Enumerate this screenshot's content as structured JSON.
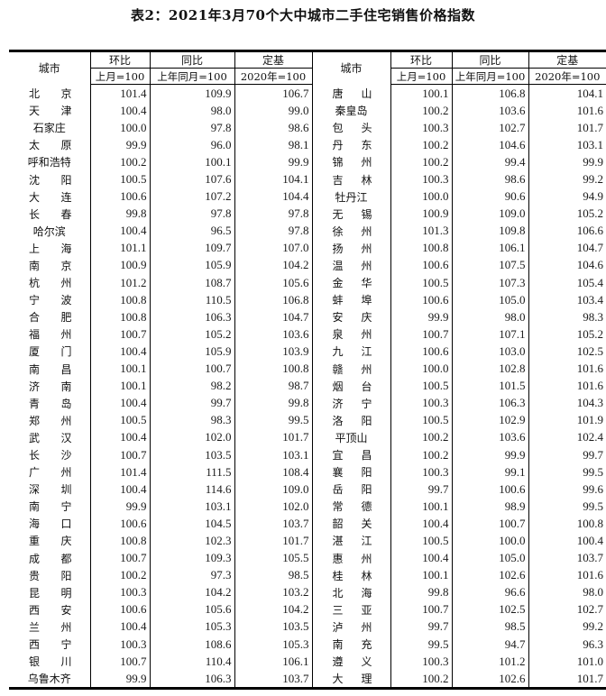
{
  "title": "表2：2021年3月70个大中城市二手住宅销售价格指数",
  "headers": {
    "city": "城市",
    "mom": "环比",
    "yoy": "同比",
    "base": "定基",
    "mom_sub": "上月=100",
    "yoy_sub": "上年同月=100",
    "base_sub": "2020年=100"
  },
  "rows": [
    [
      [
        "北京",
        "101.4",
        "109.9",
        "106.7"
      ],
      [
        "唐山",
        "100.1",
        "106.8",
        "104.1"
      ]
    ],
    [
      [
        "天津",
        "100.4",
        "98.0",
        "99.0"
      ],
      [
        "秦皇岛",
        "100.2",
        "103.6",
        "101.6"
      ]
    ],
    [
      [
        "石家庄",
        "100.0",
        "97.8",
        "98.6"
      ],
      [
        "包头",
        "100.3",
        "102.7",
        "101.7"
      ]
    ],
    [
      [
        "太原",
        "99.9",
        "96.0",
        "98.1"
      ],
      [
        "丹东",
        "100.2",
        "104.6",
        "103.1"
      ]
    ],
    [
      [
        "呼和浩特",
        "100.2",
        "100.1",
        "99.9"
      ],
      [
        "锦州",
        "100.2",
        "99.4",
        "99.9"
      ]
    ],
    [
      [
        "沈阳",
        "100.5",
        "107.6",
        "104.1"
      ],
      [
        "吉林",
        "100.3",
        "98.6",
        "99.2"
      ]
    ],
    [
      [
        "大连",
        "100.6",
        "107.2",
        "104.4"
      ],
      [
        "牡丹江",
        "100.0",
        "90.6",
        "94.9"
      ]
    ],
    [
      [
        "长春",
        "99.8",
        "97.8",
        "97.8"
      ],
      [
        "无锡",
        "100.9",
        "109.0",
        "105.2"
      ]
    ],
    [
      [
        "哈尔滨",
        "100.4",
        "96.5",
        "97.8"
      ],
      [
        "徐州",
        "101.3",
        "109.8",
        "106.6"
      ]
    ],
    [
      [
        "上海",
        "101.1",
        "109.7",
        "107.0"
      ],
      [
        "扬州",
        "100.8",
        "106.1",
        "104.7"
      ]
    ],
    [
      [
        "南京",
        "100.9",
        "105.9",
        "104.2"
      ],
      [
        "温州",
        "100.6",
        "107.5",
        "104.6"
      ]
    ],
    [
      [
        "杭州",
        "101.2",
        "108.7",
        "105.6"
      ],
      [
        "金华",
        "100.5",
        "107.3",
        "105.4"
      ]
    ],
    [
      [
        "宁波",
        "100.8",
        "110.5",
        "106.8"
      ],
      [
        "蚌埠",
        "100.6",
        "105.0",
        "103.4"
      ]
    ],
    [
      [
        "合肥",
        "100.8",
        "106.3",
        "104.7"
      ],
      [
        "安庆",
        "99.9",
        "98.0",
        "98.3"
      ]
    ],
    [
      [
        "福州",
        "100.7",
        "105.2",
        "103.6"
      ],
      [
        "泉州",
        "100.7",
        "107.1",
        "105.2"
      ]
    ],
    [
      [
        "厦门",
        "100.4",
        "105.9",
        "103.9"
      ],
      [
        "九江",
        "100.6",
        "103.0",
        "102.5"
      ]
    ],
    [
      [
        "南昌",
        "100.1",
        "100.7",
        "100.8"
      ],
      [
        "赣州",
        "100.0",
        "102.8",
        "101.6"
      ]
    ],
    [
      [
        "济南",
        "100.1",
        "98.2",
        "98.7"
      ],
      [
        "烟台",
        "100.5",
        "101.5",
        "101.6"
      ]
    ],
    [
      [
        "青岛",
        "100.4",
        "99.7",
        "99.8"
      ],
      [
        "济宁",
        "100.3",
        "106.3",
        "104.3"
      ]
    ],
    [
      [
        "郑州",
        "100.5",
        "98.3",
        "99.5"
      ],
      [
        "洛阳",
        "100.5",
        "102.9",
        "101.9"
      ]
    ],
    [
      [
        "武汉",
        "100.4",
        "102.0",
        "101.7"
      ],
      [
        "平顶山",
        "100.2",
        "103.6",
        "102.4"
      ]
    ],
    [
      [
        "长沙",
        "100.7",
        "103.5",
        "103.1"
      ],
      [
        "宜昌",
        "100.2",
        "99.9",
        "99.7"
      ]
    ],
    [
      [
        "广州",
        "101.4",
        "111.5",
        "108.4"
      ],
      [
        "襄阳",
        "100.3",
        "99.1",
        "99.5"
      ]
    ],
    [
      [
        "深圳",
        "100.4",
        "114.6",
        "109.0"
      ],
      [
        "岳阳",
        "99.7",
        "100.6",
        "99.6"
      ]
    ],
    [
      [
        "南宁",
        "99.9",
        "103.1",
        "102.0"
      ],
      [
        "常德",
        "100.1",
        "98.9",
        "99.5"
      ]
    ],
    [
      [
        "海口",
        "100.6",
        "104.5",
        "103.7"
      ],
      [
        "韶关",
        "100.4",
        "100.7",
        "100.8"
      ]
    ],
    [
      [
        "重庆",
        "100.8",
        "102.3",
        "101.7"
      ],
      [
        "湛江",
        "100.5",
        "100.0",
        "100.4"
      ]
    ],
    [
      [
        "成都",
        "100.7",
        "109.3",
        "105.5"
      ],
      [
        "惠州",
        "100.4",
        "105.0",
        "103.7"
      ]
    ],
    [
      [
        "贵阳",
        "100.2",
        "97.3",
        "98.5"
      ],
      [
        "桂林",
        "100.1",
        "102.6",
        "101.6"
      ]
    ],
    [
      [
        "昆明",
        "100.3",
        "104.2",
        "103.2"
      ],
      [
        "北海",
        "99.8",
        "96.6",
        "98.0"
      ]
    ],
    [
      [
        "西安",
        "100.6",
        "105.6",
        "104.2"
      ],
      [
        "三亚",
        "100.7",
        "102.5",
        "102.7"
      ]
    ],
    [
      [
        "兰州",
        "100.4",
        "105.3",
        "103.5"
      ],
      [
        "泸州",
        "99.7",
        "98.5",
        "99.2"
      ]
    ],
    [
      [
        "西宁",
        "100.3",
        "108.6",
        "105.3"
      ],
      [
        "南充",
        "99.5",
        "94.7",
        "96.3"
      ]
    ],
    [
      [
        "银川",
        "100.7",
        "110.4",
        "106.1"
      ],
      [
        "遵义",
        "100.3",
        "101.2",
        "101.0"
      ]
    ],
    [
      [
        "乌鲁木齐",
        "99.9",
        "106.3",
        "103.7"
      ],
      [
        "大理",
        "100.2",
        "102.6",
        "101.7"
      ]
    ]
  ]
}
